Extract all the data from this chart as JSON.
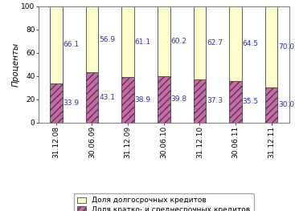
{
  "categories": [
    "31.12.08",
    "30.06.09",
    "31.12.09",
    "30.06.10",
    "31.12.10",
    "30.06.11",
    "31.12.11"
  ],
  "long_term": [
    66.1,
    56.9,
    61.1,
    60.2,
    62.7,
    64.5,
    70.0
  ],
  "short_term": [
    33.9,
    43.1,
    38.9,
    39.8,
    37.3,
    35.5,
    30.0
  ],
  "long_term_color": "#ffffcc",
  "short_term_color": "#cc66aa",
  "short_term_hatch": "////",
  "ylabel": "Проценты",
  "ylim": [
    0,
    100
  ],
  "yticks": [
    0,
    20,
    40,
    60,
    80,
    100
  ],
  "legend_long": "Доля долгосрочных кредитов",
  "legend_short": "Доля кратко- и среднесрочных кредитов",
  "label_fontsize": 6.5,
  "tick_fontsize": 6.5,
  "ylabel_fontsize": 7.5,
  "legend_fontsize": 6.5,
  "bar_width": 0.35,
  "edge_color": "#444444",
  "background_color": "#ffffff",
  "text_color": "#3333aa"
}
